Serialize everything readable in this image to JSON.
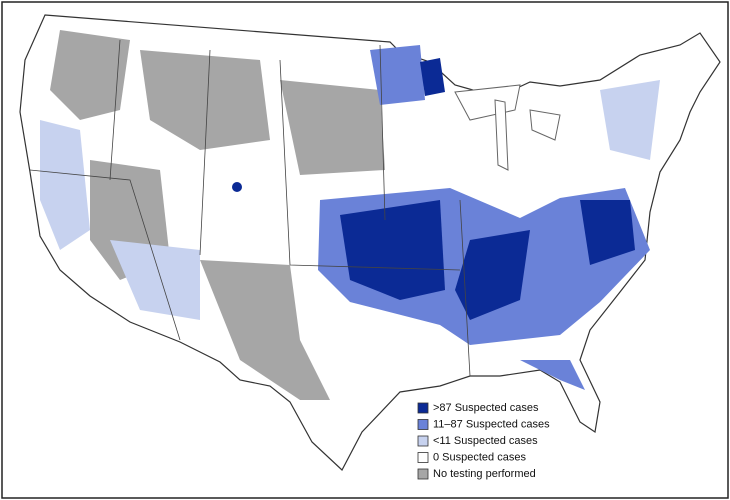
{
  "legend": {
    "items": [
      {
        "label": ">87 Suspected cases",
        "color": "#0b2a95"
      },
      {
        "label": "11–87 Suspected cases",
        "color": "#6a82d8"
      },
      {
        "label": "<11 Suspected cases",
        "color": "#c7d2ef"
      },
      {
        "label": "0 Suspected cases",
        "color": "#ffffff"
      },
      {
        "label": "No testing performed",
        "color": "#a6a6a6"
      }
    ]
  }
}
